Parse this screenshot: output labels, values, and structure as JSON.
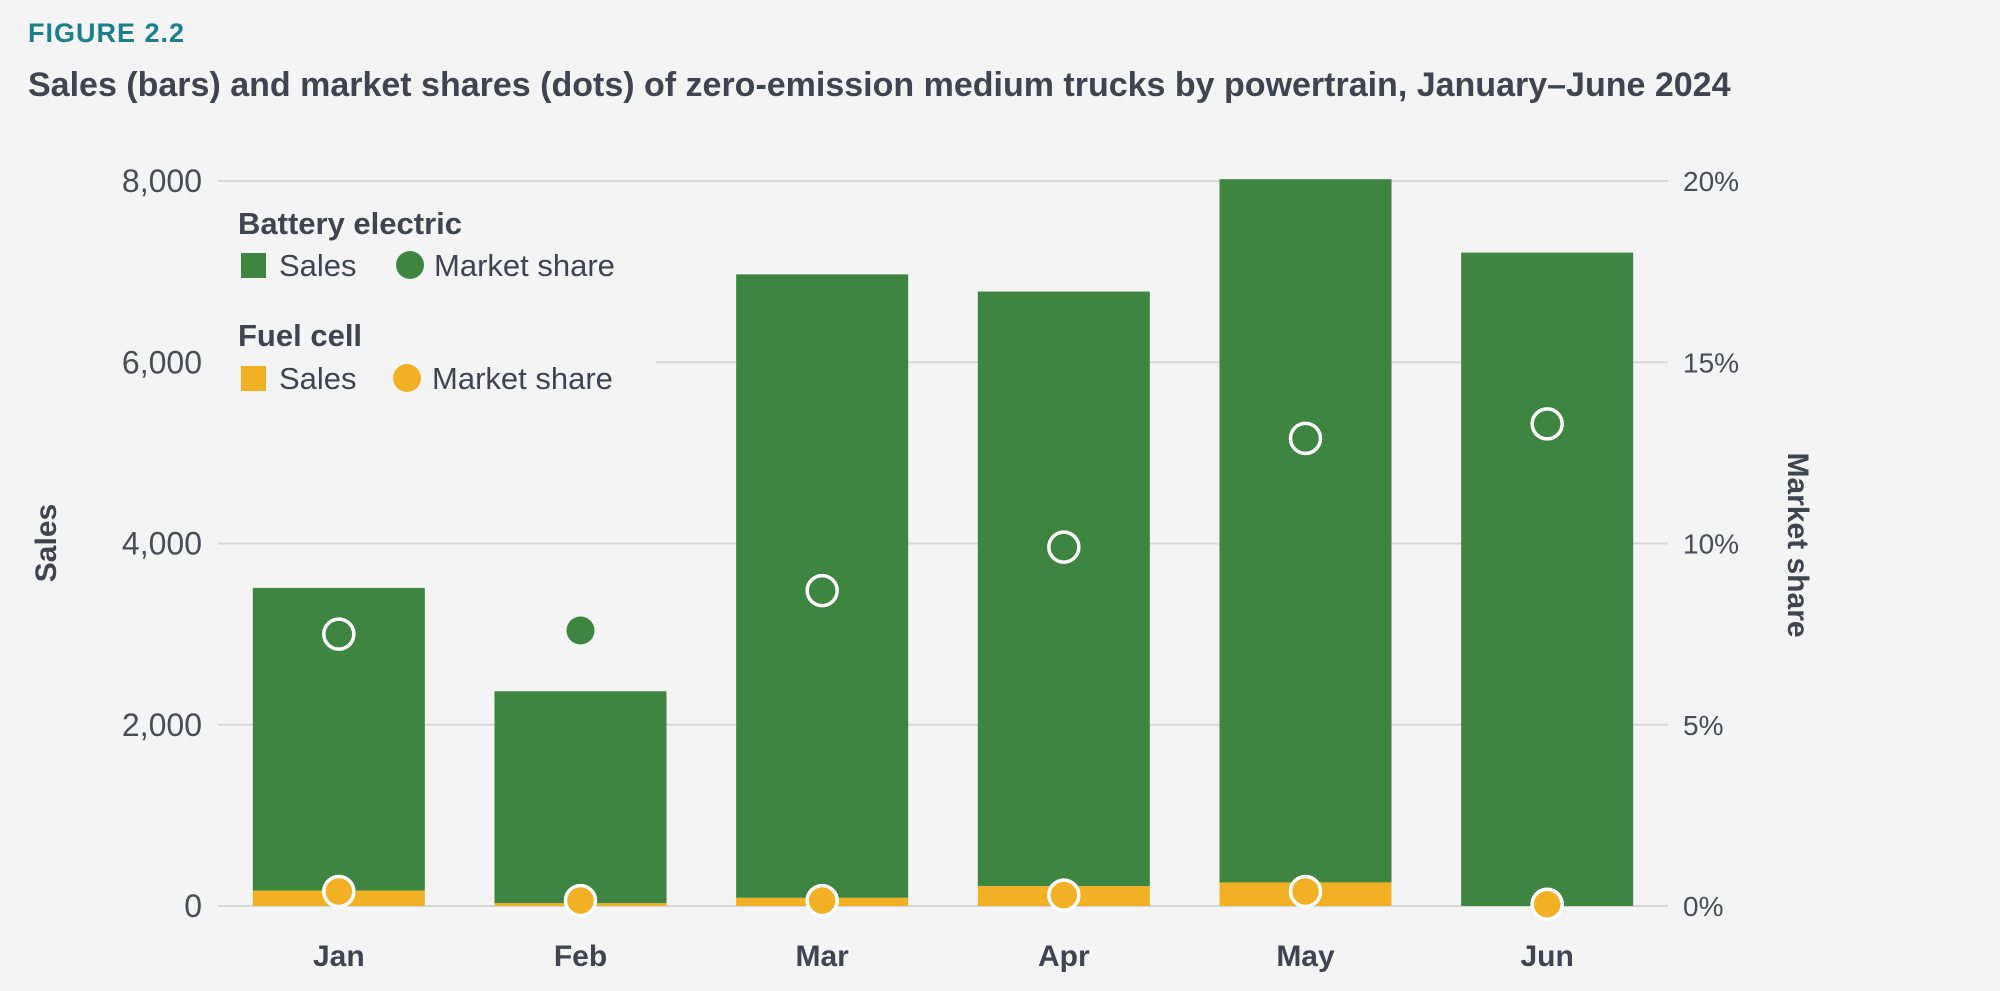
{
  "figure_label": "FIGURE 2.2",
  "title": "Sales (bars) and market shares (dots) of zero-emission medium trucks by powertrain, January–June 2024",
  "colors": {
    "battery": "#3d8540",
    "fuel": "#f2b024",
    "grid": "#d6d6d6",
    "marker_stroke": "#ffffff"
  },
  "legend": {
    "groups": [
      {
        "title": "Battery electric",
        "sales_label": "Sales",
        "share_label": "Market share",
        "color_key": "battery"
      },
      {
        "title": "Fuel cell",
        "sales_label": "Sales",
        "share_label": "Market share",
        "color_key": "fuel"
      }
    ]
  },
  "chart_data": {
    "type": "bar",
    "stacked": true,
    "categories": [
      "Jan",
      "Feb",
      "Mar",
      "Apr",
      "May",
      "Jun"
    ],
    "ylabel": "Sales",
    "ylabel_right": "Market share",
    "ylim": [
      0,
      8000
    ],
    "yticks": [
      0,
      2000,
      4000,
      6000,
      8000
    ],
    "ytick_labels": [
      "0",
      "2,000",
      "4,000",
      "6,000",
      "8,000"
    ],
    "y2lim": [
      0,
      20
    ],
    "y2ticks": [
      0,
      5,
      10,
      15,
      20
    ],
    "y2tick_labels": [
      "0%",
      "5%",
      "10%",
      "15%",
      "20%"
    ],
    "grid": true,
    "legend_position": "top-left",
    "series": [
      {
        "name": "Fuel cell sales",
        "kind": "bar",
        "color_key": "fuel",
        "values": [
          170,
          30,
          90,
          220,
          260,
          0
        ]
      },
      {
        "name": "Battery electric sales",
        "kind": "bar",
        "color_key": "battery",
        "values": [
          3340,
          2340,
          6880,
          6560,
          7760,
          7210
        ]
      },
      {
        "name": "Battery electric market share",
        "kind": "dot",
        "color_key": "battery",
        "axis": "right",
        "unit": "%",
        "values": [
          7.5,
          7.6,
          8.7,
          9.9,
          12.9,
          13.3
        ]
      },
      {
        "name": "Fuel cell market share",
        "kind": "dot",
        "color_key": "fuel",
        "axis": "right",
        "unit": "%",
        "values": [
          0.4,
          0.15,
          0.15,
          0.3,
          0.4,
          0.05
        ]
      }
    ]
  }
}
